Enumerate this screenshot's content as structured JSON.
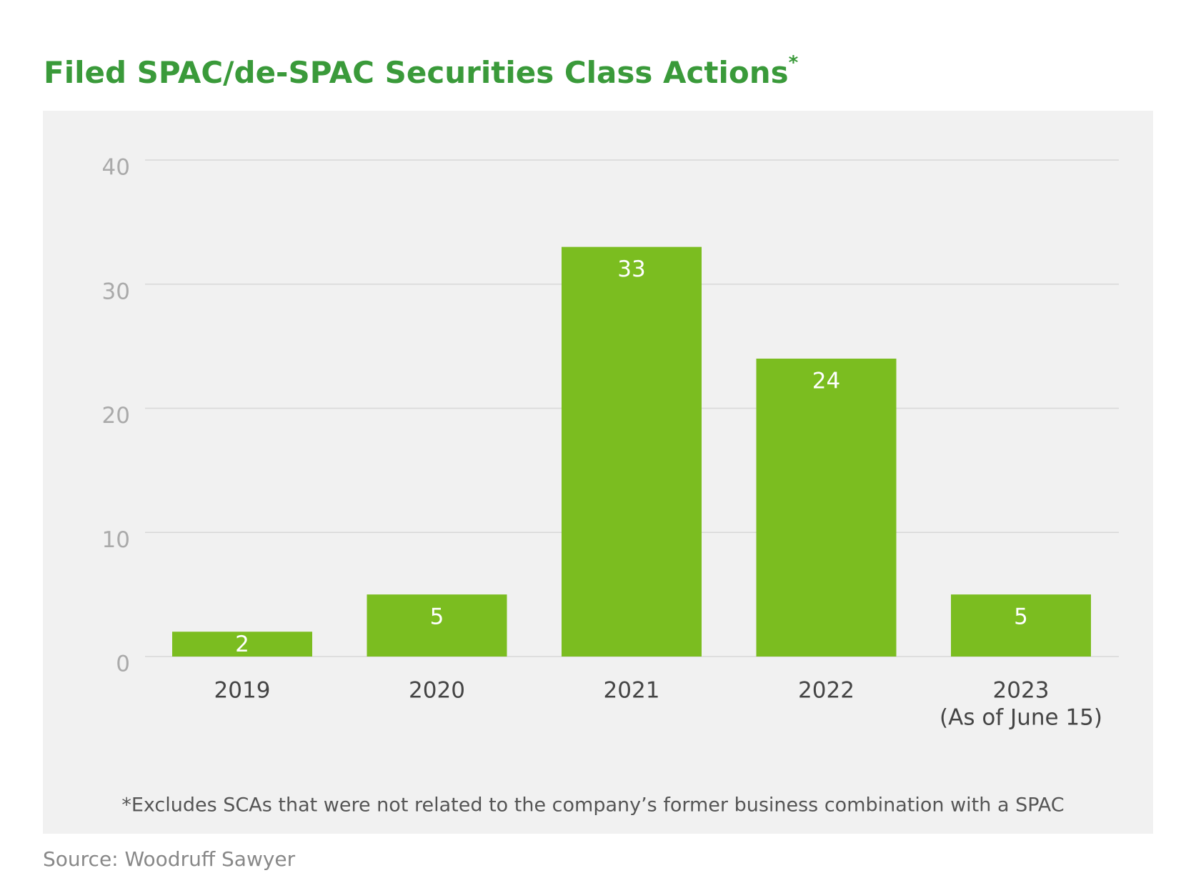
{
  "chart_data": {
    "type": "bar",
    "title": "Filed SPAC/de-SPAC Securities Class Actions",
    "title_marker": "*",
    "categories": [
      "2019",
      "2020",
      "2021",
      "2022",
      "2023"
    ],
    "category_notes": [
      null,
      null,
      null,
      null,
      "(As of June 15)"
    ],
    "values": [
      2,
      5,
      33,
      24,
      5
    ],
    "color": "#7bbd20",
    "ylim": [
      0,
      40
    ],
    "yticks": [
      0,
      10,
      20,
      30,
      40
    ],
    "grid": true,
    "footnote": "*Excludes SCAs that were not related to the company’s former business combination with a SPAC",
    "source": "Source: Woodruff Sawyer"
  }
}
